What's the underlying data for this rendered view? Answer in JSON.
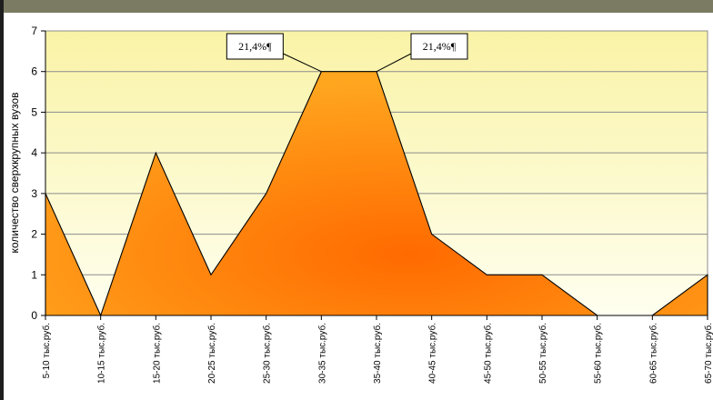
{
  "chart_data": {
    "type": "area",
    "categories": [
      "5-10 тыс.руб.",
      "10-15 тыс.руб.",
      "15-20 тыс.руб.",
      "20-25 тыс.руб.",
      "25-30 тыс.руб.",
      "30-35 тыс.руб.",
      "35-40 тыс.руб.",
      "40-45 тыс.руб.",
      "45-50 тыс.руб.",
      "50-55 тыс.руб.",
      "55-60 тыс.руб.",
      "60-65 тыс.руб.",
      "65-70 тыс.руб."
    ],
    "values": [
      3,
      0,
      4,
      1,
      3,
      6,
      6,
      2,
      1,
      1,
      0,
      0,
      1
    ],
    "ylabel": "количество сверхкрупных вузов",
    "xlabel": "",
    "ylim": [
      0,
      7
    ],
    "yticks": [
      0,
      1,
      2,
      3,
      4,
      5,
      6,
      7
    ],
    "grid": true,
    "legend": "none",
    "annotations": [
      {
        "text": "21,4%¶",
        "category_index": 5
      },
      {
        "text": "21,4%¶",
        "category_index": 6
      }
    ],
    "colors": {
      "plot_bg_top": "#f9f3a6",
      "plot_bg_bottom": "#fffff0",
      "area_light": "#ffa51e",
      "area_dark": "#ff6a00",
      "top_band": "#7a7b62"
    }
  }
}
